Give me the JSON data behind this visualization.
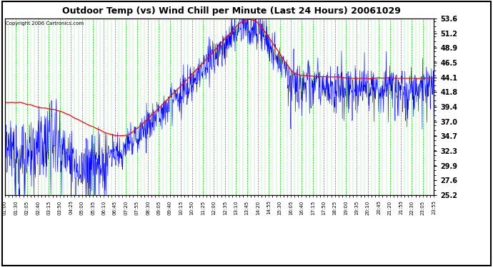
{
  "title": "Outdoor Temp (vs) Wind Chill per Minute (Last 24 Hours) 20061029",
  "copyright": "Copyright 2006 Cartronics.com",
  "plot_bg_color": "#ffffff",
  "fig_bg_color": "#ffffff",
  "grid_major_color": "#00CC00",
  "grid_minor_color": "#00CC00",
  "temp_color": "#FF0000",
  "wind_color": "#0000FF",
  "tick_label_color": "#000000",
  "border_color": "#000000",
  "ylim_min": 25.2,
  "ylim_max": 53.6,
  "yticks": [
    25.2,
    27.6,
    29.9,
    32.3,
    34.7,
    37.0,
    39.4,
    41.8,
    44.1,
    46.5,
    48.9,
    51.2,
    53.6
  ],
  "x_labels": [
    "01:00",
    "01:30",
    "02:05",
    "02:40",
    "03:15",
    "03:50",
    "04:25",
    "05:00",
    "05:35",
    "06:10",
    "06:45",
    "07:20",
    "07:55",
    "08:30",
    "09:05",
    "09:40",
    "10:15",
    "10:50",
    "11:25",
    "12:00",
    "12:35",
    "13:10",
    "13:45",
    "14:20",
    "14:55",
    "15:30",
    "16:05",
    "16:40",
    "17:15",
    "17:50",
    "18:25",
    "19:00",
    "19:35",
    "20:10",
    "20:45",
    "21:20",
    "21:55",
    "22:30",
    "23:05",
    "23:55"
  ],
  "num_points": 1440
}
